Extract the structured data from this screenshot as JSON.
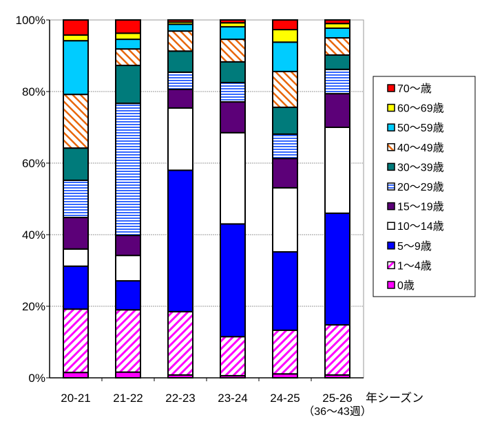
{
  "chart_data": {
    "type": "bar",
    "stacked": true,
    "percent": true,
    "title": "",
    "xlabel": "年シーズン",
    "ylabel": "",
    "ylim": [
      0,
      100
    ],
    "yticks": [
      "0%",
      "20%",
      "40%",
      "60%",
      "80%",
      "100%"
    ],
    "grid": true,
    "legend_position": "right",
    "categories": [
      "20-21",
      "21-22",
      "22-23",
      "23-24",
      "24-25",
      "25-26"
    ],
    "category_note": "（36〜43週）",
    "series": [
      {
        "name": "0歳",
        "color": "#ff00ff",
        "pattern": "solid",
        "values": [
          1.5,
          1.6,
          0.8,
          0.6,
          1.1,
          0.8
        ]
      },
      {
        "name": "1〜4歳",
        "color": "#ff00ff",
        "pattern": "diag-back",
        "values": [
          17.7,
          17.4,
          17.7,
          10.9,
          12.2,
          14.0
        ]
      },
      {
        "name": "5〜9歳",
        "color": "#0000ff",
        "pattern": "solid",
        "values": [
          12.0,
          8.1,
          39.5,
          31.5,
          21.9,
          31.2
        ]
      },
      {
        "name": "10〜14歳",
        "color": "#ffffff",
        "pattern": "solid",
        "values": [
          4.8,
          7.1,
          17.4,
          25.5,
          17.9,
          24.0
        ]
      },
      {
        "name": "15〜19歳",
        "color": "#5c0078",
        "pattern": "solid",
        "values": [
          8.8,
          5.6,
          5.2,
          8.6,
          8.2,
          9.4
        ]
      },
      {
        "name": "20〜29歳",
        "color": "#3366ff",
        "pattern": "horizontal",
        "values": [
          10.4,
          36.9,
          4.8,
          5.4,
          6.8,
          6.8
        ]
      },
      {
        "name": "30〜39歳",
        "color": "#007b7b",
        "pattern": "solid",
        "values": [
          9.0,
          10.6,
          5.9,
          5.8,
          7.5,
          4.0
        ]
      },
      {
        "name": "40〜49歳",
        "color": "#e8660a",
        "pattern": "diag-fwd",
        "values": [
          15.0,
          4.6,
          5.6,
          6.3,
          10.0,
          4.8
        ]
      },
      {
        "name": "50〜59歳",
        "color": "#00ccff",
        "pattern": "solid",
        "values": [
          15.0,
          2.7,
          1.9,
          3.5,
          8.2,
          2.7
        ]
      },
      {
        "name": "60〜69歳",
        "color": "#ffff00",
        "pattern": "solid",
        "values": [
          1.6,
          1.7,
          0.6,
          1.1,
          3.5,
          1.3
        ]
      },
      {
        "name": "70〜歳",
        "color": "#ff0000",
        "pattern": "solid",
        "values": [
          4.2,
          3.7,
          0.6,
          0.8,
          2.7,
          1.0
        ]
      }
    ]
  }
}
